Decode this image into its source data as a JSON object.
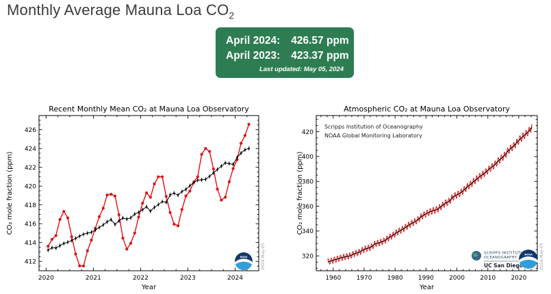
{
  "page": {
    "title_main": "Monthly Average Mauna Loa CO",
    "title_sub": "2"
  },
  "summary_box": {
    "bg_color": "#2e7d52",
    "text_color": "#ffffff",
    "rows": [
      {
        "label": "April 2024:",
        "value": "426.57 ppm"
      },
      {
        "label": "April 2023:",
        "value": "423.37 ppm"
      }
    ],
    "last_updated": "Last updated: May 05, 2024"
  },
  "chart_data": [
    {
      "id": "recent",
      "type": "line",
      "title": "Recent Monthly Mean CO₂ at Mauna Loa Observatory",
      "xlabel": "Year",
      "ylabel": "CO₂ mole fraction (ppm)",
      "xlim": [
        2019.85,
        2024.5
      ],
      "ylim": [
        411,
        427.5
      ],
      "xticks": [
        2020,
        2021,
        2022,
        2023,
        2024
      ],
      "yticks": [
        412,
        414,
        416,
        418,
        420,
        422,
        424,
        426
      ],
      "x_minor_step": 0.25,
      "y_minor_step": 0.5,
      "grid": false,
      "legend": "none",
      "watermark": "2024-May-05",
      "logos": [
        "noaa"
      ],
      "noaa_label": "NOAA",
      "series": [
        {
          "name": "monthly mean",
          "color": "#e01010",
          "marker": "circle",
          "start": 2020.042,
          "step": 0.0833333,
          "values": [
            413.61,
            414.34,
            414.74,
            416.45,
            417.31,
            416.62,
            414.62,
            412.78,
            411.52,
            411.51,
            413.12,
            414.26,
            415.52,
            416.75,
            417.64,
            419.05,
            419.13,
            418.94,
            416.96,
            414.47,
            413.3,
            413.93,
            415.01,
            416.71,
            418.19,
            419.28,
            418.81,
            420.23,
            420.99,
            420.99,
            418.9,
            417.19,
            415.95,
            415.78,
            417.51,
            418.95,
            419.47,
            420.41,
            421.0,
            423.37,
            424.0,
            423.68,
            421.83,
            419.68,
            418.51,
            418.82,
            420.46,
            421.86,
            422.8,
            424.55,
            425.38,
            426.57
          ]
        },
        {
          "name": "trend season removed",
          "color": "#000000",
          "marker": "dot",
          "error_bar": 0.22,
          "start": 2020.042,
          "step": 0.0833333,
          "values": [
            413.2,
            413.45,
            413.42,
            413.67,
            413.9,
            414.04,
            414.22,
            414.44,
            414.68,
            414.88,
            415.0,
            415.09,
            415.34,
            415.6,
            415.88,
            416.2,
            416.44,
            415.93,
            416.3,
            416.61,
            416.5,
            416.63,
            417.02,
            417.21,
            417.49,
            417.8,
            417.34,
            417.74,
            418.03,
            418.36,
            418.27,
            419.07,
            419.25,
            419.04,
            419.42,
            419.65,
            420.04,
            420.38,
            420.63,
            420.67,
            420.72,
            421.04,
            421.4,
            421.77,
            422.12,
            422.47,
            422.39,
            422.31,
            423.04,
            423.51,
            423.86,
            424.0
          ]
        }
      ]
    },
    {
      "id": "full",
      "type": "line",
      "title": "Atmospheric CO₂ at Mauna Loa Observatory",
      "xlabel": "Year",
      "ylabel": "CO₂ mole fraction (ppm)",
      "xlim": [
        1954.5,
        2026
      ],
      "ylim": [
        308,
        433
      ],
      "xticks": [
        1960,
        1970,
        1980,
        1990,
        2000,
        2010,
        2020
      ],
      "yticks": [
        320,
        340,
        360,
        380,
        400,
        420
      ],
      "x_minor_step": 2,
      "y_minor_step": 5,
      "grid": false,
      "legend": "none",
      "annotations": [
        "Scripps Institution of Oceanography",
        "NOAA Global Monitoring Laboratory"
      ],
      "watermark": "2024-May-05",
      "logos": [
        "scripps",
        "noaa"
      ],
      "noaa_label": "NOAA",
      "scripps_text": {
        "line1": "SCRIPPS INSTITUTION OF",
        "line2": "OCEANOGRAPHY",
        "line3": "UC San Diego"
      },
      "monthly_color": "#e01010",
      "trend_color": "#000000",
      "annual_means": {
        "start_year": 1958,
        "values": [
          315.33,
          315.98,
          316.91,
          317.64,
          318.45,
          318.99,
          319.62,
          320.04,
          321.37,
          322.18,
          323.05,
          324.62,
          325.68,
          326.32,
          327.46,
          329.68,
          330.19,
          331.13,
          332.03,
          333.84,
          335.41,
          336.84,
          338.76,
          340.12,
          341.48,
          343.15,
          344.87,
          346.35,
          347.61,
          349.31,
          351.69,
          353.2,
          354.45,
          355.7,
          356.54,
          357.21,
          358.96,
          360.97,
          362.74,
          363.88,
          366.84,
          368.54,
          369.71,
          371.32,
          373.45,
          375.98,
          377.7,
          379.98,
          382.09,
          384.02,
          385.83,
          387.64,
          390.1,
          391.85,
          394.06,
          396.74,
          398.81,
          401.01,
          404.41,
          406.76,
          408.72,
          411.66,
          414.24,
          416.45,
          418.56,
          421.08,
          424.6
        ]
      },
      "seasonal_amplitude": [
        2.3,
        2.9
      ],
      "data_start": 1958.2,
      "data_end": 2024.33
    }
  ]
}
